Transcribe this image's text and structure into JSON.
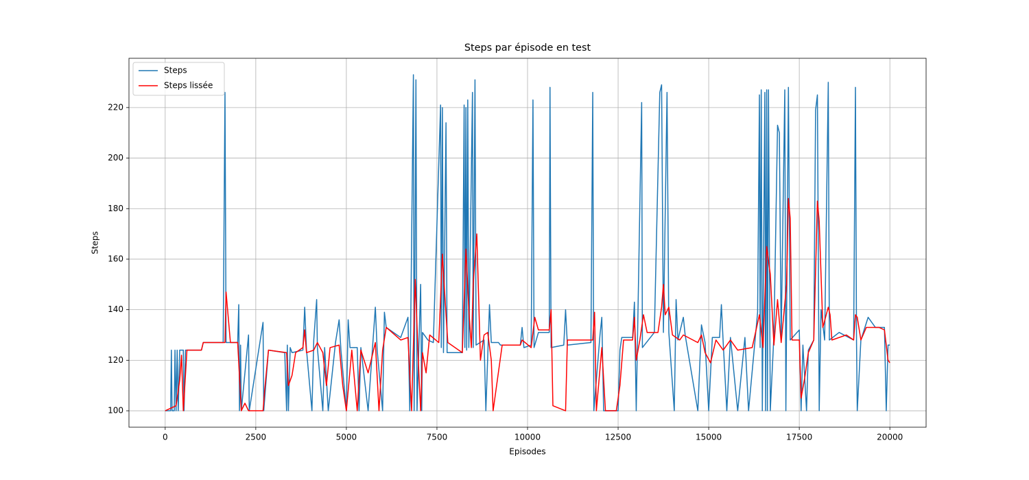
{
  "chart_data": {
    "type": "line",
    "title": "Steps par épisode en test",
    "xlabel": "Episodes",
    "ylabel": "Steps",
    "xlim": [
      -1000,
      21000
    ],
    "ylim": [
      93.5,
      239.5
    ],
    "xticks": [
      0,
      2500,
      5000,
      7500,
      10000,
      12500,
      15000,
      17500,
      20000
    ],
    "yticks": [
      100,
      120,
      140,
      160,
      180,
      200,
      220
    ],
    "grid": true,
    "legend": "upper left",
    "series": [
      {
        "name": "Steps",
        "color": "#1f77b4",
        "x": [
          0,
          150,
          170,
          190,
          250,
          270,
          300,
          330,
          360,
          400,
          500,
          520,
          560,
          1000,
          1050,
          1600,
          1650,
          1680,
          2000,
          2030,
          2050,
          2080,
          2100,
          2300,
          2320,
          2700,
          2720,
          2850,
          3300,
          3350,
          3370,
          3400,
          3450,
          3500,
          3800,
          3850,
          3900,
          4050,
          4100,
          4180,
          4200,
          4350,
          4400,
          4500,
          4700,
          4800,
          4850,
          5000,
          5050,
          5100,
          5300,
          5350,
          5400,
          5600,
          5800,
          5850,
          6000,
          6050,
          6100,
          6500,
          6700,
          6750,
          6850,
          6870,
          6920,
          6950,
          7050,
          7080,
          7100,
          7250,
          7400,
          7600,
          7620,
          7650,
          7680,
          7750,
          7780,
          8200,
          8250,
          8270,
          8300,
          8320,
          8350,
          8380,
          8480,
          8500,
          8550,
          8580,
          8800,
          8850,
          8950,
          9000,
          9200,
          9250,
          9400,
          9800,
          9850,
          9900,
          10100,
          10150,
          10180,
          10300,
          10600,
          10620,
          10650,
          11000,
          11050,
          11100,
          11750,
          11800,
          11830,
          12000,
          12050,
          12100,
          12500,
          12550,
          12600,
          12900,
          12950,
          13000,
          13150,
          13170,
          13500,
          13650,
          13700,
          13750,
          13850,
          13900,
          14050,
          14100,
          14150,
          14300,
          14350,
          14700,
          14800,
          14900,
          15000,
          15100,
          15300,
          15350,
          15400,
          15500,
          15600,
          15800,
          16000,
          16100,
          16350,
          16400,
          16420,
          16450,
          16480,
          16550,
          16570,
          16600,
          16620,
          16650,
          16700,
          16800,
          16900,
          16950,
          17000,
          17100,
          17130,
          17200,
          17250,
          17500,
          17550,
          17600,
          17700,
          17750,
          17900,
          17950,
          18000,
          18050,
          18100,
          18200,
          18300,
          18330,
          18600,
          19000,
          19050,
          19080,
          19100,
          19200,
          19400,
          19600,
          19850,
          19900,
          19950,
          20000
        ],
        "values": [
          100,
          100,
          124,
          100,
          100,
          124,
          100,
          124,
          100,
          124,
          124,
          100,
          124,
          124,
          127,
          127,
          226,
          127,
          127,
          142,
          100,
          126,
          100,
          130,
          100,
          135,
          100,
          124,
          123,
          100,
          126,
          100,
          125,
          123,
          124,
          141,
          124,
          100,
          128,
          144,
          125,
          100,
          125,
          100,
          127,
          136,
          124,
          100,
          136,
          125,
          125,
          100,
          125,
          100,
          141,
          124,
          100,
          139,
          133,
          129,
          137,
          100,
          233,
          100,
          231,
          100,
          150,
          100,
          131,
          128,
          127,
          221,
          125,
          220,
          123,
          214,
          123,
          123,
          221,
          125,
          220,
          124,
          223,
          125,
          226,
          125,
          231,
          126,
          128,
          100,
          142,
          127,
          127,
          126,
          126,
          126,
          133,
          125,
          126,
          223,
          125,
          131,
          131,
          228,
          125,
          126,
          140,
          126,
          127,
          226,
          100,
          130,
          137,
          100,
          100,
          124,
          129,
          129,
          143,
          100,
          222,
          125,
          131,
          226,
          229,
          131,
          226,
          131,
          100,
          144,
          128,
          137,
          130,
          100,
          134,
          127,
          100,
          129,
          129,
          142,
          127,
          100,
          129,
          100,
          129,
          100,
          139,
          225,
          125,
          227,
          100,
          226,
          100,
          227,
          100,
          227,
          100,
          130,
          213,
          210,
          128,
          227,
          100,
          228,
          128,
          132,
          100,
          126,
          100,
          124,
          128,
          219,
          225,
          100,
          140,
          128,
          230,
          128,
          131,
          128,
          228,
          127,
          100,
          128,
          137,
          133,
          133,
          100,
          126,
          126
        ]
      },
      {
        "name": "Steps lissée",
        "color": "#ff0000",
        "x": [
          0,
          300,
          400,
          450,
          500,
          600,
          1000,
          1050,
          1650,
          1680,
          1800,
          2000,
          2100,
          2200,
          2300,
          2700,
          2750,
          2850,
          3350,
          3400,
          3500,
          3600,
          3800,
          3850,
          3900,
          4100,
          4200,
          4350,
          4450,
          4550,
          4800,
          4900,
          5000,
          5150,
          5300,
          5400,
          5600,
          5800,
          5900,
          6000,
          6100,
          6500,
          6700,
          6800,
          6900,
          7000,
          7050,
          7100,
          7200,
          7300,
          7550,
          7650,
          7720,
          7800,
          8200,
          8300,
          8380,
          8450,
          8500,
          8600,
          8620,
          8700,
          8800,
          8900,
          9000,
          9050,
          9300,
          9800,
          9850,
          10100,
          10200,
          10300,
          10600,
          10650,
          10700,
          11050,
          11100,
          11800,
          11850,
          11900,
          12050,
          12150,
          12450,
          12550,
          12650,
          12900,
          12950,
          13000,
          13100,
          13200,
          13300,
          13600,
          13700,
          13750,
          13800,
          13900,
          14000,
          14200,
          14300,
          14700,
          14800,
          14900,
          15050,
          15200,
          15400,
          15600,
          15800,
          16200,
          16400,
          16500,
          16600,
          16700,
          16800,
          16900,
          17000,
          17150,
          17200,
          17250,
          17300,
          17500,
          17550,
          17650,
          17750,
          17900,
          18000,
          18050,
          18150,
          18300,
          18350,
          18400,
          18800,
          19000,
          19050,
          19100,
          19200,
          19350,
          19700,
          19850,
          19950,
          20000
        ],
        "values": [
          100,
          102,
          112,
          122,
          100,
          124,
          124,
          127,
          127,
          147,
          127,
          127,
          100,
          103,
          100,
          100,
          109,
          124,
          123,
          110,
          114,
          123,
          125,
          132,
          123,
          124,
          127,
          123,
          110,
          125,
          126,
          110,
          100,
          124,
          100,
          124,
          115,
          127,
          100,
          124,
          133,
          128,
          129,
          100,
          152,
          115,
          100,
          123,
          115,
          130,
          127,
          162,
          145,
          127,
          123,
          164,
          140,
          125,
          150,
          170,
          160,
          120,
          130,
          131,
          120,
          100,
          126,
          126,
          128,
          125,
          137,
          132,
          132,
          140,
          102,
          100,
          128,
          128,
          139,
          100,
          125,
          100,
          100,
          110,
          128,
          128,
          137,
          120,
          128,
          138,
          131,
          131,
          141,
          150,
          138,
          141,
          130,
          128,
          130,
          127,
          130,
          123,
          119,
          128,
          124,
          128,
          124,
          125,
          138,
          125,
          165,
          154,
          126,
          144,
          127,
          150,
          184,
          176,
          128,
          128,
          105,
          113,
          123,
          128,
          183,
          175,
          133,
          141,
          138,
          128,
          130,
          128,
          138,
          137,
          128,
          133,
          133,
          132,
          120,
          119
        ]
      }
    ]
  }
}
